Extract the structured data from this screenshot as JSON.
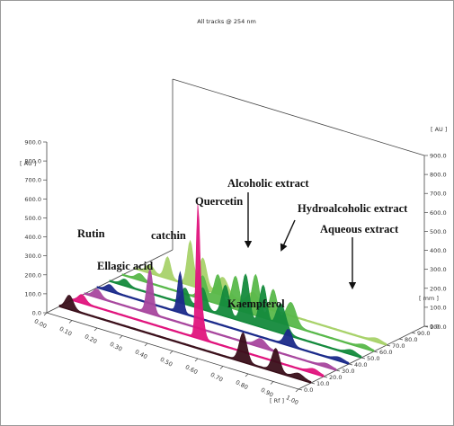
{
  "chart_data": {
    "type": "area",
    "title": "All tracks @ 254 nm",
    "x_unit": "[ Rf ]",
    "y_unit": "[ AU ]",
    "z_unit": "[ mm ]",
    "x_ticks": [
      "0.00",
      "0.10",
      "0.20",
      "0.30",
      "0.40",
      "0.50",
      "0.60",
      "0.70",
      "0.80",
      "0.90",
      "1.00"
    ],
    "y_ticks": [
      "0.0",
      "100.0",
      "200.0",
      "300.0",
      "400.0",
      "500.0",
      "600.0",
      "700.0",
      "800.0",
      "900.0"
    ],
    "y_ticks_right": [
      "0.0",
      "100.0",
      "200.0",
      "300.0",
      "400.0",
      "500.0",
      "600.0",
      "700.0",
      "800.0",
      "900.0"
    ],
    "z_ticks": [
      "0.0",
      "10.0",
      "20.0",
      "30.0",
      "40.0",
      "50.0",
      "60.0",
      "70.0",
      "80.0",
      "90.0",
      "100.0"
    ],
    "xlim": [
      0,
      1
    ],
    "ylim": [
      0,
      900
    ],
    "zlim": [
      0,
      100
    ],
    "series": [
      {
        "color": "#3a0f1a",
        "z": 10,
        "peaks": [
          [
            0.04,
            70,
            0.015
          ],
          [
            0.73,
            150,
            0.015
          ],
          [
            0.86,
            120,
            0.015
          ],
          [
            0.95,
            25,
            0.02
          ]
        ]
      },
      {
        "color": "#e0147d",
        "z": 20,
        "peaks": [
          [
            0.04,
            40,
            0.015
          ],
          [
            0.5,
            560,
            0.007
          ],
          [
            0.51,
            200,
            0.012
          ],
          [
            0.96,
            20,
            0.02
          ]
        ]
      },
      {
        "color": "#a8479e",
        "z": 30,
        "peaks": [
          [
            0.05,
            40,
            0.015
          ],
          [
            0.26,
            230,
            0.012
          ],
          [
            0.7,
            40,
            0.02
          ],
          [
            0.96,
            15,
            0.02
          ]
        ]
      },
      {
        "color": "#1b2a8a",
        "z": 40,
        "peaks": [
          [
            0.05,
            30,
            0.015
          ],
          [
            0.33,
            210,
            0.01
          ],
          [
            0.76,
            80,
            0.015
          ],
          [
            0.96,
            15,
            0.02
          ]
        ]
      },
      {
        "color": "#148a3c",
        "z": 50,
        "peaks": [
          [
            0.06,
            30,
            0.015
          ],
          [
            0.3,
            80,
            0.015
          ],
          [
            0.37,
            110,
            0.015
          ],
          [
            0.46,
            160,
            0.015
          ],
          [
            0.54,
            250,
            0.015
          ],
          [
            0.61,
            220,
            0.015
          ],
          [
            0.68,
            150,
            0.02
          ],
          [
            0.96,
            20,
            0.02
          ]
        ]
      },
      {
        "color": "#58b84a",
        "z": 60,
        "peaks": [
          [
            0.07,
            30,
            0.015
          ],
          [
            0.32,
            120,
            0.015
          ],
          [
            0.38,
            150,
            0.015
          ],
          [
            0.45,
            170,
            0.015
          ],
          [
            0.53,
            210,
            0.015
          ],
          [
            0.6,
            160,
            0.015
          ],
          [
            0.67,
            120,
            0.02
          ],
          [
            0.96,
            15,
            0.02
          ]
        ]
      },
      {
        "color": "#a8d26a",
        "z": 70,
        "peaks": [
          [
            0.06,
            40,
            0.015
          ],
          [
            0.13,
            110,
            0.012
          ],
          [
            0.22,
            230,
            0.012
          ],
          [
            0.27,
            160,
            0.015
          ],
          [
            0.35,
            90,
            0.02
          ],
          [
            0.47,
            60,
            0.02
          ],
          [
            0.96,
            15,
            0.02
          ]
        ]
      }
    ],
    "annotations": [
      {
        "id": "rutin",
        "text": "Rutin"
      },
      {
        "id": "ellagic",
        "text": "Ellagic acid"
      },
      {
        "id": "catchin",
        "text": "catchin"
      },
      {
        "id": "quercetin",
        "text": "Quercetin"
      },
      {
        "id": "kaempferol",
        "text": "Kaempferol"
      },
      {
        "id": "alcoholic",
        "text": "Alcoholic extract"
      },
      {
        "id": "hydroalcoholic",
        "text": "Hydroalcoholic extract"
      },
      {
        "id": "aqueous",
        "text": "Aqueous extract"
      }
    ],
    "grid": false,
    "legend": "none"
  }
}
